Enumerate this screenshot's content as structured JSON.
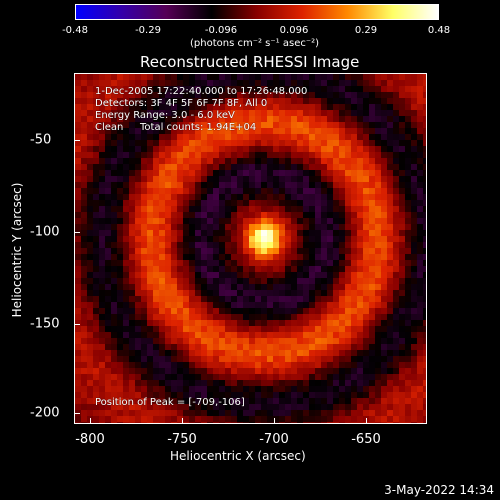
{
  "colorbar": {
    "ticks": [
      "-0.48",
      "-0.29",
      "-0.096",
      "0.096",
      "0.29",
      "0.48"
    ],
    "units": "(photons cm⁻² s⁻¹ asec⁻²)"
  },
  "plot": {
    "title": "Reconstructed RHESSI Image",
    "time_range": "1-Dec-2005 17:22:40.000 to 17:26:48.000",
    "detectors": "Detectors: 3F 4F 5F 6F 7F 8F, All 0",
    "energy_range": "Energy Range: 3.0 - 6.0 keV",
    "algorithm": "Clean",
    "total_counts": "Total counts: 1.94E+04",
    "peak_position": "Position of Peak = [-709,-106]"
  },
  "chart_data": {
    "type": "heatmap",
    "title": "Reconstructed RHESSI Image",
    "xlabel": "Heliocentric X (arcsec)",
    "ylabel": "Heliocentric Y (arcsec)",
    "xlim": [
      -810,
      -620
    ],
    "ylim": [
      -205,
      -21
    ],
    "xticks": [
      "-800",
      "-750",
      "-700",
      "-650"
    ],
    "yticks": [
      "-50",
      "-100",
      "-150",
      "-200"
    ],
    "zlim": [
      -0.48,
      0.48
    ],
    "peak": [
      -709,
      -106
    ],
    "colormap": [
      "#0000ff",
      "#3300aa",
      "#550055",
      "#000000",
      "#880000",
      "#dd2200",
      "#ff8800",
      "#ffff66",
      "#ffffff"
    ]
  },
  "timestamp": "3-May-2022 14:34"
}
